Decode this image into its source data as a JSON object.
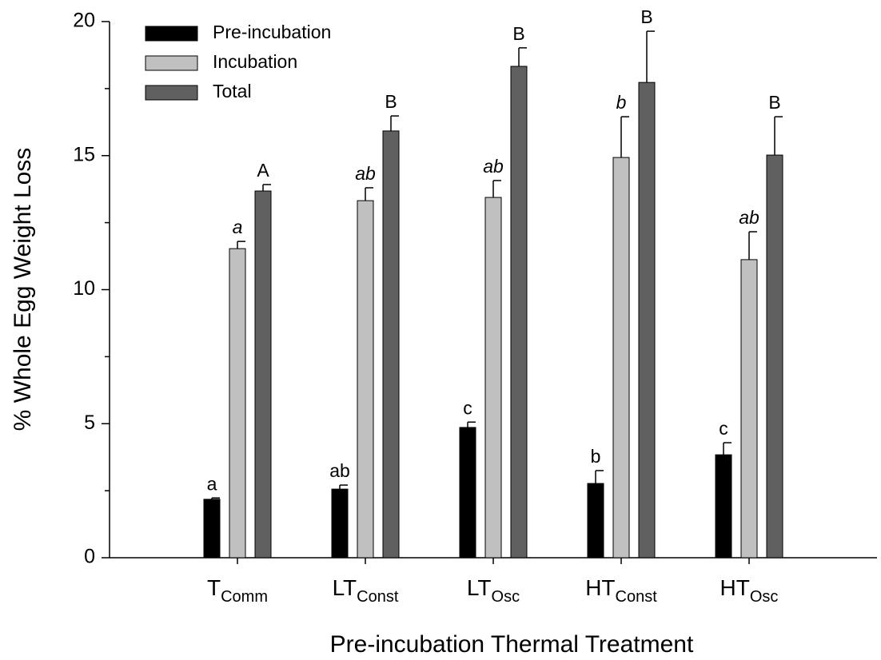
{
  "chart_data": {
    "type": "bar",
    "x_label": "Pre-incubation Thermal Treatment",
    "y_label": "% Whole Egg Weight Loss",
    "categories": [
      [
        "T",
        "Comm"
      ],
      [
        "LT",
        "Const"
      ],
      [
        "LT",
        "Osc"
      ],
      [
        "HT",
        "Const"
      ],
      [
        "HT",
        "Osc"
      ]
    ],
    "series": [
      {
        "name": "Pre-incubation",
        "color": "#000000",
        "letter_style": "normal",
        "values": [
          2.18,
          2.56,
          4.86,
          2.77,
          3.84
        ],
        "errors": [
          0.05,
          0.15,
          0.2,
          0.48,
          0.45
        ],
        "letters": [
          "a",
          "ab",
          "c",
          "b",
          "c"
        ]
      },
      {
        "name": "Incubation",
        "color": "#c0c0c0",
        "letter_style": "italic",
        "values": [
          11.53,
          13.32,
          13.44,
          14.93,
          11.12
        ],
        "errors": [
          0.27,
          0.48,
          0.63,
          1.52,
          1.04
        ],
        "letters": [
          "a",
          "ab",
          "ab",
          "b",
          "ab"
        ]
      },
      {
        "name": "Total",
        "color": "#606060",
        "letter_style": "normal",
        "values": [
          13.68,
          15.92,
          18.33,
          17.73,
          15.02
        ],
        "errors": [
          0.24,
          0.56,
          0.69,
          1.91,
          1.43
        ],
        "letters": [
          "A",
          "B",
          "B",
          "B",
          "B"
        ]
      }
    ],
    "ylim": [
      0,
      20
    ],
    "yticks": [
      0,
      5,
      10,
      15,
      20
    ],
    "minor_yticks": [
      2.5,
      7.5,
      12.5,
      17.5
    ],
    "legend": "upper left",
    "grid": false
  }
}
